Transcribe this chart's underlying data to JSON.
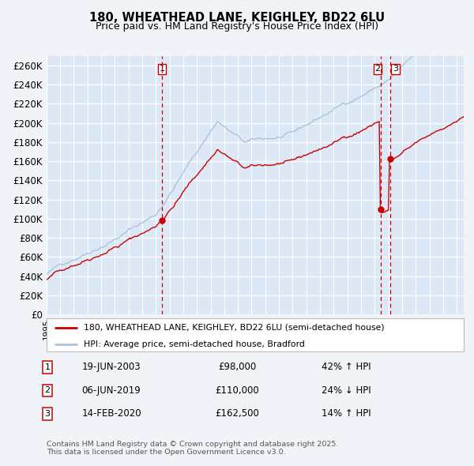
{
  "title": "180, WHEATHEAD LANE, KEIGHLEY, BD22 6LU",
  "subtitle": "Price paid vs. HM Land Registry's House Price Index (HPI)",
  "ylabel_ticks": [
    "£0",
    "£20K",
    "£40K",
    "£60K",
    "£80K",
    "£100K",
    "£120K",
    "£140K",
    "£160K",
    "£180K",
    "£200K",
    "£220K",
    "£240K",
    "£260K"
  ],
  "ylim": [
    0,
    270000
  ],
  "ytick_vals": [
    0,
    20000,
    40000,
    60000,
    80000,
    100000,
    120000,
    140000,
    160000,
    180000,
    200000,
    220000,
    240000,
    260000
  ],
  "xmin": 1995.0,
  "xmax": 2025.5,
  "hpi_color": "#aac4e0",
  "price_color": "#cc0000",
  "vline_color": "#cc0000",
  "sale1_date": 2003.46,
  "sale1_price": 98000,
  "sale2_date": 2019.42,
  "sale2_price": 110000,
  "sale3_date": 2020.12,
  "sale3_price": 162500,
  "legend_label1": "180, WHEATHEAD LANE, KEIGHLEY, BD22 6LU (semi-detached house)",
  "legend_label2": "HPI: Average price, semi-detached house, Bradford",
  "table_rows": [
    [
      "1",
      "19-JUN-2003",
      "£98,000",
      "42% ↑ HPI"
    ],
    [
      "2",
      "06-JUN-2019",
      "£110,000",
      "24% ↓ HPI"
    ],
    [
      "3",
      "14-FEB-2020",
      "£162,500",
      "14% ↑ HPI"
    ]
  ],
  "footnote": "Contains HM Land Registry data © Crown copyright and database right 2025.\nThis data is licensed under the Open Government Licence v3.0.",
  "fig_bg_color": "#f0f4f8",
  "plot_bg_color": "#dce8f5",
  "grid_color": "#ffffff"
}
